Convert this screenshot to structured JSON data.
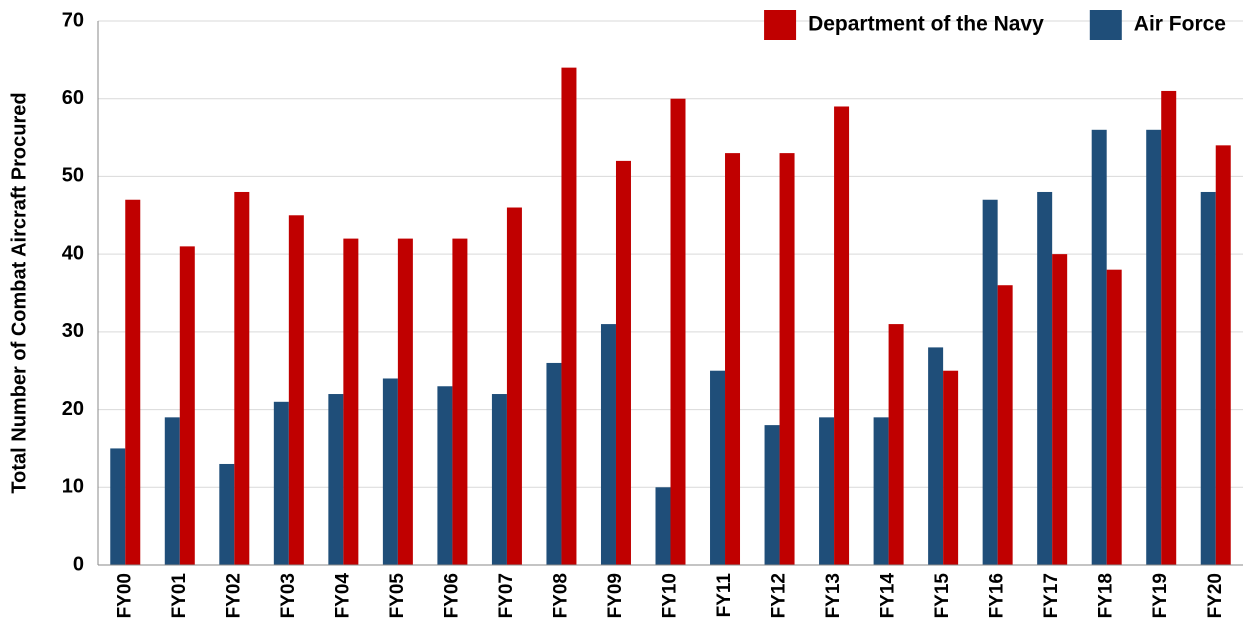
{
  "chart_data": {
    "type": "bar",
    "y_label": "Total Number of Combat Aircraft Procured",
    "categories": [
      "FY00",
      "FY01",
      "FY02",
      "FY03",
      "FY04",
      "FY05",
      "FY06",
      "FY07",
      "FY08",
      "FY09",
      "FY10",
      "FY11",
      "FY12",
      "FY13",
      "FY14",
      "FY15",
      "FY16",
      "FY17",
      "FY18",
      "FY19",
      "FY20"
    ],
    "series": [
      {
        "name": "Air Force",
        "color": "#1f4e79",
        "values": [
          15,
          19,
          13,
          21,
          22,
          24,
          23,
          22,
          26,
          31,
          10,
          25,
          18,
          19,
          19,
          28,
          47,
          48,
          56,
          56,
          48
        ]
      },
      {
        "name": "Department of the Navy",
        "color": "#c00000",
        "values": [
          47,
          41,
          48,
          45,
          42,
          42,
          42,
          46,
          64,
          52,
          60,
          53,
          53,
          59,
          31,
          25,
          36,
          40,
          38,
          61,
          54
        ]
      }
    ],
    "ylim": [
      0,
      70
    ],
    "yticks": [
      0,
      10,
      20,
      30,
      40,
      50,
      60,
      70
    ],
    "grid": true,
    "legend": "top-right"
  }
}
